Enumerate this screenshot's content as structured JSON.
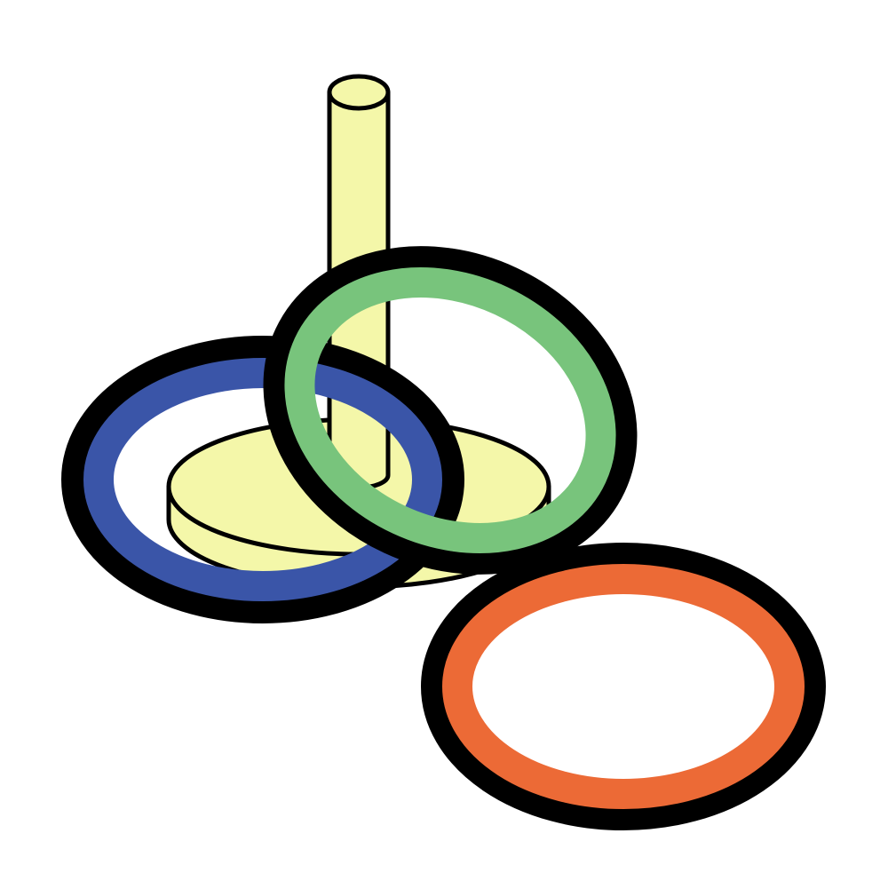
{
  "illustration": {
    "subject": "ring-toss-game",
    "outline_color": "#000000",
    "background_color": "#ffffff",
    "peg_color": "#f4f7a9",
    "rings": [
      {
        "name": "blue-ring",
        "color": "#3a55a8"
      },
      {
        "name": "green-ring",
        "color": "#78c47c"
      },
      {
        "name": "orange-ring",
        "color": "#ec6a36"
      }
    ]
  }
}
